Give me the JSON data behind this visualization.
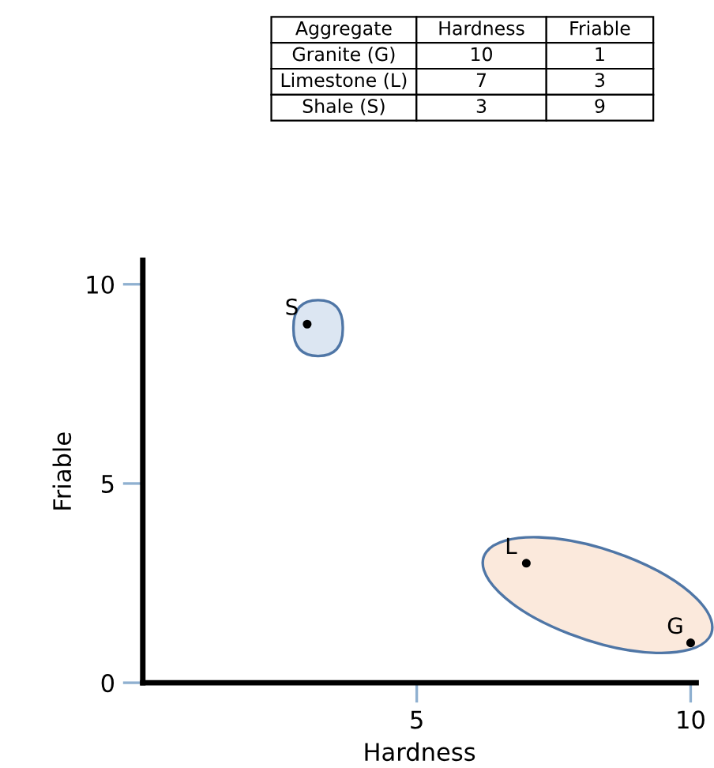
{
  "chart_data": [
    {
      "type": "other",
      "annotations": [
        "Aggregate",
        "Hardness",
        "Friable"
      ],
      "categories": [
        "Granite (G)",
        "Limestone (L)",
        "Shale (S)"
      ],
      "series": [
        {
          "values": [
            10,
            7,
            3
          ]
        },
        {
          "values": [
            1,
            3,
            9
          ]
        }
      ],
      "data_labels": true
    },
    {
      "type": "scatter",
      "xlabel": "Hardness",
      "ylabel": "Friable",
      "series": [
        {
          "x": [
            10,
            7,
            3
          ],
          "values": [
            1,
            3,
            9
          ],
          "color": "#000000"
        }
      ],
      "annotations": [
        {
          "text": "G",
          "x": 10,
          "y": 1
        },
        {
          "text": "L",
          "x": 7,
          "y": 3
        },
        {
          "text": "S",
          "x": 3,
          "y": 9
        }
      ],
      "xlim": [
        0,
        10.1
      ],
      "ylim": [
        0,
        10.6
      ],
      "xticks": [
        5,
        10
      ],
      "yticks": [
        0,
        5,
        10
      ],
      "marker": "circle",
      "grid": false,
      "legend": false
    }
  ]
}
